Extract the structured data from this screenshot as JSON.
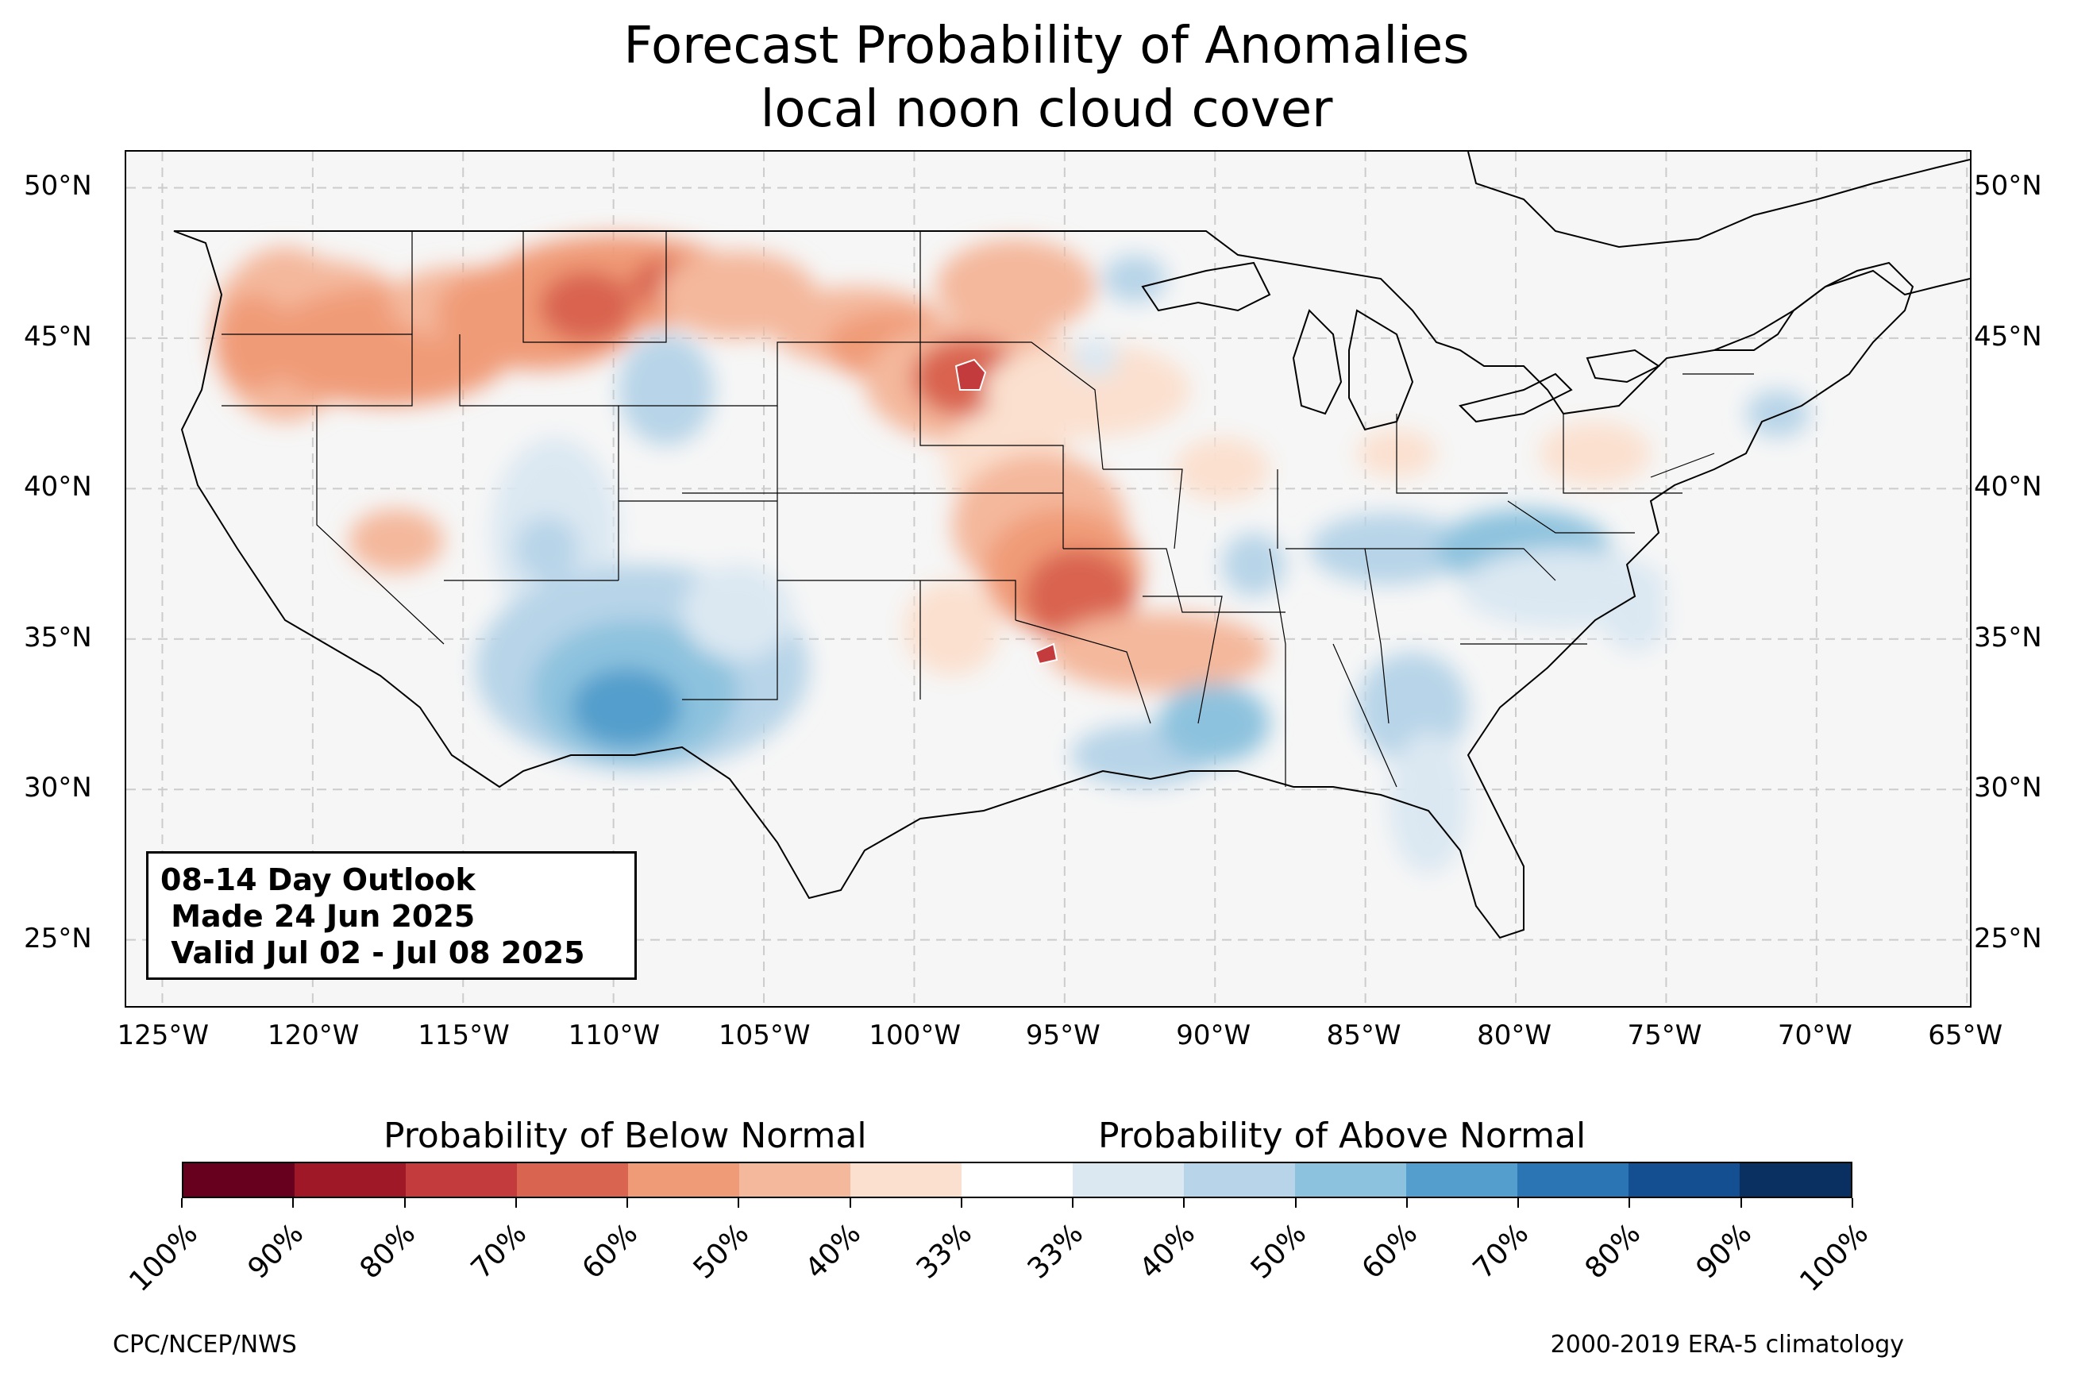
{
  "title": {
    "line1": "Forecast Probability of Anomalies",
    "line2": "local noon cloud cover"
  },
  "info_box": {
    "line1": "08-14 Day Outlook",
    "line2": " Made 24 Jun 2025",
    "line3": " Valid Jul 02 - Jul 08 2025"
  },
  "axes": {
    "lat_labels": [
      "50°N",
      "45°N",
      "40°N",
      "35°N",
      "30°N",
      "25°N"
    ],
    "lat_values": [
      50,
      45,
      40,
      35,
      30,
      25
    ],
    "lon_labels": [
      "125°W",
      "120°W",
      "115°W",
      "110°W",
      "105°W",
      "100°W",
      "95°W",
      "90°W",
      "85°W",
      "80°W",
      "75°W",
      "70°W",
      "65°W"
    ],
    "lon_values": [
      -125,
      -120,
      -115,
      -110,
      -105,
      -100,
      -95,
      -90,
      -85,
      -80,
      -75,
      -70,
      -65
    ],
    "lon_range": [
      -126.2,
      -64.9
    ],
    "lat_range": [
      22.8,
      51.2
    ],
    "grid": "dashed"
  },
  "colorbar": {
    "below_title": "Probability of Below Normal",
    "above_title": "Probability of Above Normal",
    "tick_labels": [
      "100%",
      "90%",
      "80%",
      "70%",
      "60%",
      "50%",
      "40%",
      "33%",
      "33%",
      "40%",
      "50%",
      "60%",
      "70%",
      "80%",
      "90%",
      "100%"
    ],
    "colors": [
      "#67001f",
      "#9f1828",
      "#c33b3c",
      "#d96450",
      "#f09b78",
      "#f4b89c",
      "#fbe0cf",
      "#ffffff",
      "#dbe8f2",
      "#b7d4e8",
      "#8dc2de",
      "#539ecc",
      "#2c75b5",
      "#134f91",
      "#0a3061"
    ]
  },
  "credits": {
    "left": "CPC/NCEP/NWS",
    "right": "2000-2019 ERA-5 climatology"
  }
}
